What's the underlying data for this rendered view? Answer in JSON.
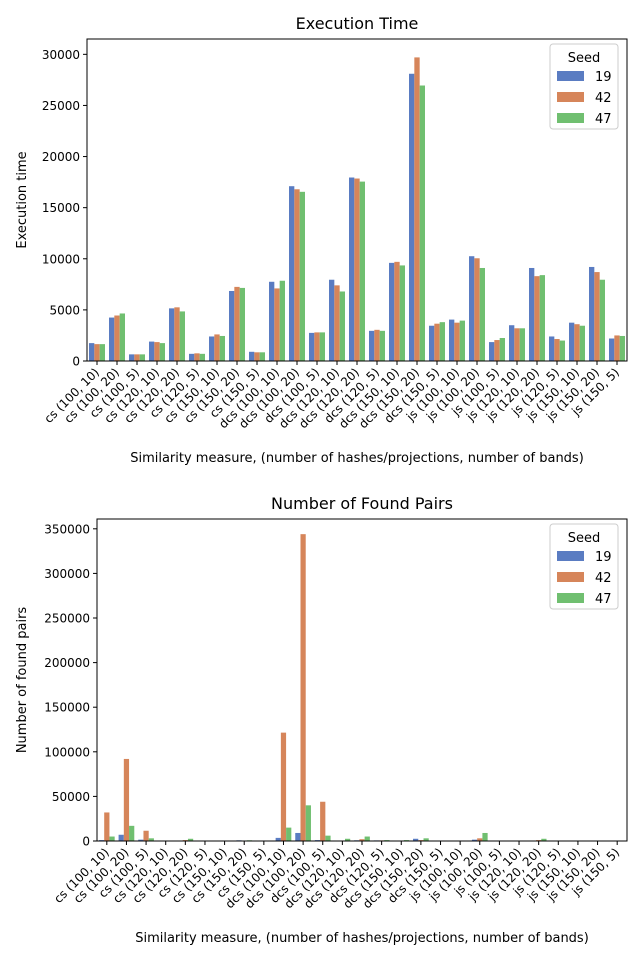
{
  "chart_data": [
    {
      "type": "bar",
      "title": "Execution Time",
      "xlabel": "Similarity measure, (number of hashes/projections, number of bands)",
      "ylabel": "Execution time",
      "ylim": [
        0,
        31500
      ],
      "yticks": [
        0,
        5000,
        10000,
        15000,
        20000,
        25000,
        30000
      ],
      "grid": false,
      "legend": {
        "title": "Seed",
        "placement": "top-right"
      },
      "categories": [
        "cs (100, 10)",
        "cs (100, 20)",
        "cs (100, 5)",
        "cs (120, 10)",
        "cs (120, 20)",
        "cs (120, 5)",
        "cs (150, 10)",
        "cs (150, 20)",
        "cs (150, 5)",
        "dcs (100, 10)",
        "dcs (100, 20)",
        "dcs (100, 5)",
        "dcs (120, 10)",
        "dcs (120, 20)",
        "dcs (120, 5)",
        "dcs (150, 10)",
        "dcs (150, 20)",
        "dcs (150, 5)",
        "js (100, 10)",
        "js (100, 20)",
        "js (100, 5)",
        "js (120, 10)",
        "js (120, 20)",
        "js (120, 5)",
        "js (150, 10)",
        "js (150, 20)",
        "js (150, 5)"
      ],
      "series": [
        {
          "name": "19",
          "color": "#5a7cc2",
          "values": [
            1750,
            4250,
            650,
            1900,
            5150,
            700,
            2400,
            6850,
            900,
            7750,
            17100,
            2750,
            7950,
            17950,
            2950,
            9600,
            28100,
            3450,
            4050,
            10250,
            1850,
            3500,
            9100,
            2400,
            3750,
            9200,
            2200
          ]
        },
        {
          "name": "42",
          "color": "#d6855a",
          "values": [
            1650,
            4450,
            650,
            1850,
            5250,
            750,
            2600,
            7250,
            850,
            7100,
            16800,
            2800,
            7400,
            17850,
            3050,
            9700,
            29700,
            3650,
            3750,
            10050,
            2050,
            3200,
            8300,
            2150,
            3600,
            8700,
            2500
          ]
        },
        {
          "name": "47",
          "color": "#70bf70",
          "values": [
            1650,
            4650,
            650,
            1750,
            4850,
            700,
            2450,
            7150,
            850,
            7850,
            16550,
            2800,
            6800,
            17550,
            2950,
            9350,
            26950,
            3800,
            3950,
            9100,
            2250,
            3200,
            8400,
            2000,
            3450,
            7950,
            2450
          ]
        }
      ]
    },
    {
      "type": "bar",
      "title": "Number of Found Pairs",
      "xlabel": "Similarity measure, (number of hashes/projections, number of bands)",
      "ylabel": "Number of found pairs",
      "ylim": [
        0,
        361000
      ],
      "yticks": [
        0,
        50000,
        100000,
        150000,
        200000,
        250000,
        300000,
        350000
      ],
      "grid": false,
      "legend": {
        "title": "Seed",
        "placement": "top-right"
      },
      "categories": [
        "cs (100, 10)",
        "cs (100, 20)",
        "cs (100, 5)",
        "cs (120, 10)",
        "cs (120, 20)",
        "cs (120, 5)",
        "cs (150, 10)",
        "cs (150, 20)",
        "cs (150, 5)",
        "dcs (100, 10)",
        "dcs (100, 20)",
        "dcs (100, 5)",
        "dcs (120, 10)",
        "dcs (120, 20)",
        "dcs (120, 5)",
        "dcs (150, 10)",
        "dcs (150, 20)",
        "dcs (150, 5)",
        "js (100, 10)",
        "js (100, 20)",
        "js (100, 5)",
        "js (120, 10)",
        "js (120, 20)",
        "js (120, 5)",
        "js (150, 10)",
        "js (150, 20)",
        "js (150, 5)"
      ],
      "series": [
        {
          "name": "19",
          "color": "#5a7cc2",
          "values": [
            1000,
            7000,
            1500,
            200,
            500,
            100,
            100,
            800,
            100,
            3500,
            9000,
            1000,
            500,
            800,
            700,
            500,
            2500,
            300,
            200,
            1500,
            200,
            100,
            500,
            100,
            100,
            200,
            100
          ]
        },
        {
          "name": "42",
          "color": "#d6855a",
          "values": [
            32000,
            92000,
            11500,
            500,
            1000,
            300,
            300,
            500,
            200,
            121500,
            344000,
            44000,
            500,
            2000,
            700,
            500,
            1000,
            300,
            200,
            3000,
            300,
            100,
            1000,
            200,
            100,
            300,
            100
          ]
        },
        {
          "name": "47",
          "color": "#70bf70",
          "values": [
            5000,
            17000,
            3000,
            500,
            2500,
            200,
            200,
            800,
            100,
            15000,
            40000,
            6000,
            2500,
            5000,
            1000,
            1000,
            3000,
            500,
            500,
            9000,
            500,
            200,
            2500,
            200,
            100,
            300,
            100
          ]
        }
      ]
    }
  ]
}
